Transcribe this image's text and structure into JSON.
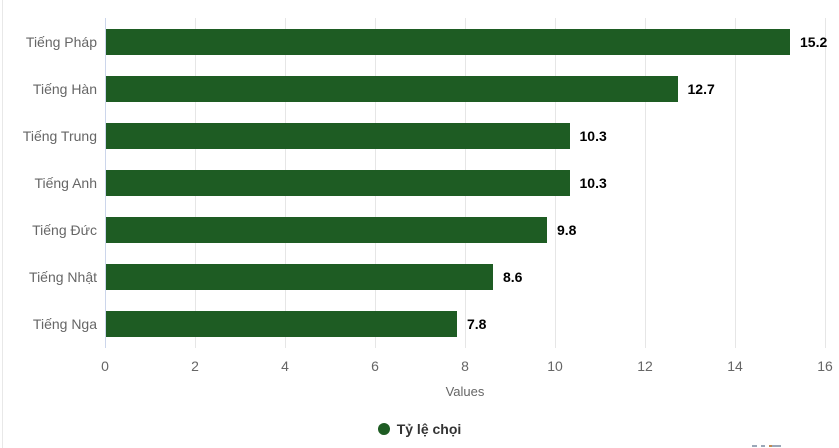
{
  "chart_data": {
    "type": "bar",
    "orientation": "horizontal",
    "categories": [
      "Tiếng Pháp",
      "Tiếng Hàn",
      "Tiếng Trung",
      "Tiếng Anh",
      "Tiếng Đức",
      "Tiếng Nhật",
      "Tiếng Nga"
    ],
    "series": [
      {
        "name": "Tỷ lệ chọi",
        "values": [
          15.2,
          12.7,
          10.3,
          10.3,
          9.8,
          8.6,
          7.8
        ]
      }
    ],
    "xlabel": "Values",
    "xlim": [
      0,
      16
    ],
    "xticks": [
      0,
      2,
      4,
      6,
      8,
      10,
      12,
      14,
      16
    ],
    "grid": true,
    "legend_position": "bottom"
  },
  "colors": {
    "bar": "#1e5c23",
    "gridline": "#e6e6e6",
    "axis_line": "#ccd6eb",
    "axis_label": "#666666",
    "value_label": "#000000",
    "legend_text": "#333333",
    "background": "#ffffff"
  }
}
